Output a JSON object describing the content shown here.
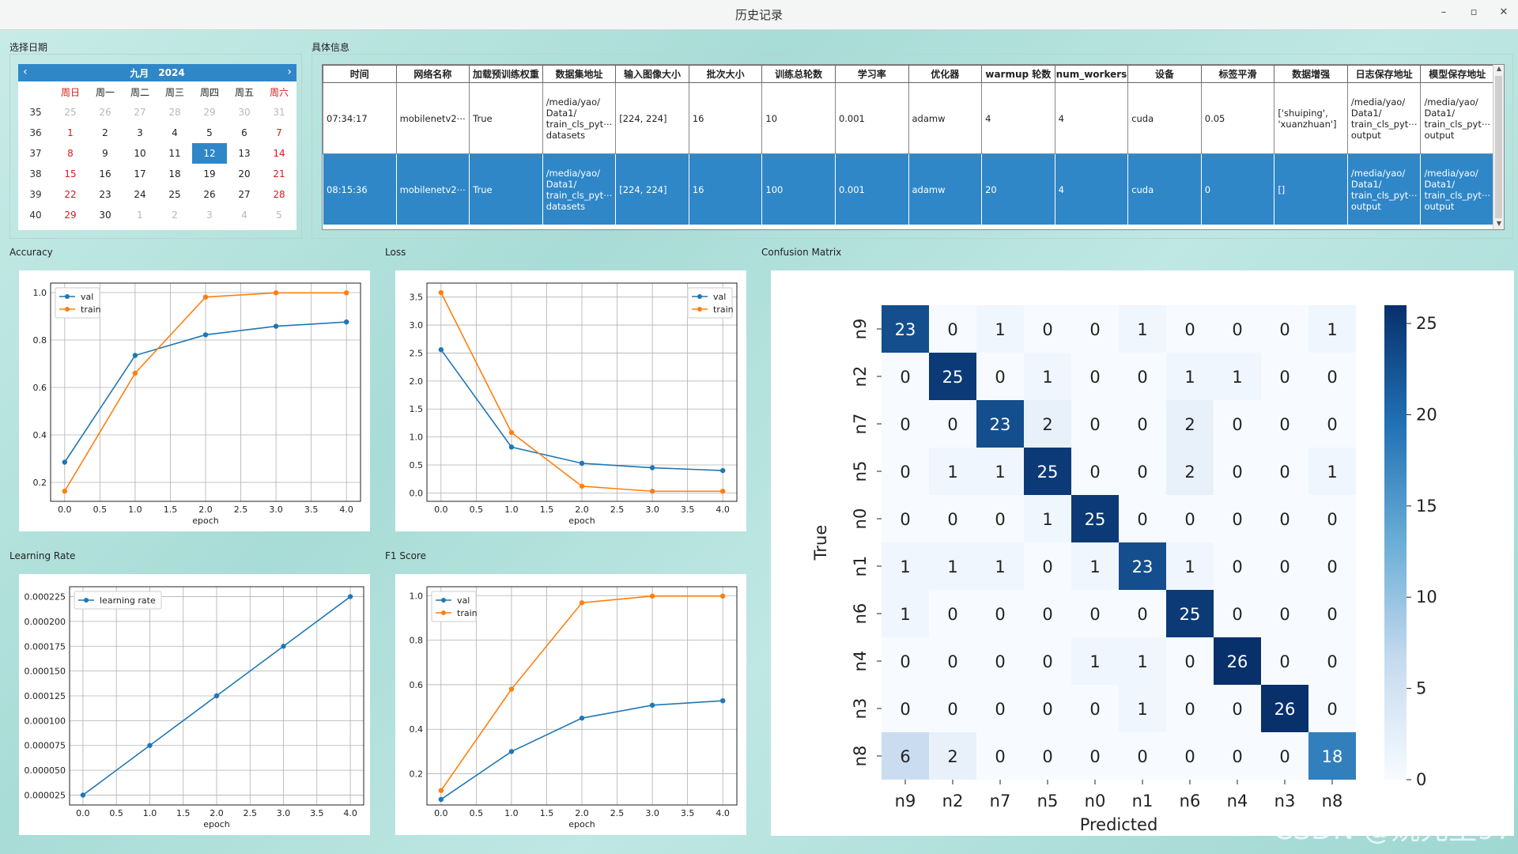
{
  "window": {
    "title": "历史记录",
    "controls": [
      "–",
      "▫",
      "✕"
    ]
  },
  "labels": {
    "date": "选择日期",
    "detail": "具体信息",
    "accuracy": "Accuracy",
    "loss": "Loss",
    "cm": "Confusion Matrix",
    "lr": "Learning Rate",
    "f1": "F1 Score"
  },
  "calendar": {
    "month": "九月",
    "year": "2024",
    "prev_icon": "‹",
    "next_icon": "›",
    "weekdays": [
      "周日",
      "周一",
      "周二",
      "周三",
      "周四",
      "周五",
      "周六"
    ],
    "weeks": [
      {
        "wk": "35",
        "days": [
          "25",
          "26",
          "27",
          "28",
          "29",
          "30",
          "31"
        ],
        "dim": [
          0,
          1,
          2,
          3,
          4,
          5,
          6
        ]
      },
      {
        "wk": "36",
        "days": [
          "1",
          "2",
          "3",
          "4",
          "5",
          "6",
          "7"
        ],
        "dim": []
      },
      {
        "wk": "37",
        "days": [
          "8",
          "9",
          "10",
          "11",
          "12",
          "13",
          "14"
        ],
        "dim": []
      },
      {
        "wk": "38",
        "days": [
          "15",
          "16",
          "17",
          "18",
          "19",
          "20",
          "21"
        ],
        "dim": []
      },
      {
        "wk": "39",
        "days": [
          "22",
          "23",
          "24",
          "25",
          "26",
          "27",
          "28"
        ],
        "dim": []
      },
      {
        "wk": "40",
        "days": [
          "29",
          "30",
          "1",
          "2",
          "3",
          "4",
          "5"
        ],
        "dim": [
          2,
          3,
          4,
          5,
          6
        ]
      }
    ],
    "selected": "12"
  },
  "table": {
    "headers": [
      "时间",
      "网络名称",
      "加载预训练权重",
      "数据集地址",
      "输入图像大小",
      "批次大小",
      "训练总轮数",
      "学习率",
      "优化器",
      "warmup 轮数",
      "num_workers",
      "设备",
      "标签平滑",
      "数据增强",
      "日志保存地址",
      "模型保存地址"
    ],
    "rows": [
      [
        "07:34:17",
        "mobilenetv2⋯",
        "True",
        "/media/yao/ Data1/ train_cls_pyt⋯ datasets",
        "[224, 224]",
        "16",
        "10",
        "0.001",
        "adamw",
        "4",
        "4",
        "cuda",
        "0.05",
        "['shuiping', 'xuanzhuan']",
        "/media/yao/ Data1/ train_cls_pyt⋯ output",
        "/media/yao/ Data1/ train_cls_pyt⋯ output"
      ],
      [
        "08:15:36",
        "mobilenetv2⋯",
        "True",
        "/media/yao/ Data1/ train_cls_pyt⋯ datasets",
        "[224, 224]",
        "16",
        "100",
        "0.001",
        "adamw",
        "20",
        "4",
        "cuda",
        "0",
        "[]",
        "/media/yao/ Data1/ train_cls_pyt⋯ output",
        "/media/yao/ Data1/ train_cls_pyt⋯ output"
      ]
    ],
    "selected_row": 1
  },
  "chart_data": [
    {
      "id": "accuracy",
      "type": "line",
      "xlabel": "epoch",
      "x": [
        0,
        1,
        2,
        3,
        4
      ],
      "xlim": [
        -0.2,
        4.2
      ],
      "ylim": [
        0.12,
        1.04
      ],
      "xticks": [
        0.0,
        0.5,
        1.0,
        1.5,
        2.0,
        2.5,
        3.0,
        3.5,
        4.0
      ],
      "yticks": [
        0.2,
        0.4,
        0.6,
        0.8,
        1.0
      ],
      "legend": "top-left",
      "series": [
        {
          "name": "val",
          "color": "#1f77b4",
          "values": [
            0.285,
            0.735,
            0.822,
            0.858,
            0.876
          ]
        },
        {
          "name": "train",
          "color": "#ff7f0e",
          "values": [
            0.163,
            0.66,
            0.981,
            0.999,
            0.999
          ]
        }
      ]
    },
    {
      "id": "loss",
      "type": "line",
      "xlabel": "epoch",
      "x": [
        0,
        1,
        2,
        3,
        4
      ],
      "xlim": [
        -0.2,
        4.2
      ],
      "ylim": [
        -0.15,
        3.75
      ],
      "xticks": [
        0.0,
        0.5,
        1.0,
        1.5,
        2.0,
        2.5,
        3.0,
        3.5,
        4.0
      ],
      "yticks": [
        0.0,
        0.5,
        1.0,
        1.5,
        2.0,
        2.5,
        3.0,
        3.5
      ],
      "legend": "top-right",
      "series": [
        {
          "name": "val",
          "color": "#1f77b4",
          "values": [
            2.56,
            0.82,
            0.53,
            0.45,
            0.4
          ]
        },
        {
          "name": "train",
          "color": "#ff7f0e",
          "values": [
            3.58,
            1.08,
            0.12,
            0.03,
            0.03
          ]
        }
      ]
    },
    {
      "id": "lr",
      "type": "line",
      "xlabel": "epoch",
      "x": [
        0,
        1,
        2,
        3,
        4
      ],
      "xlim": [
        -0.2,
        4.2
      ],
      "ylim": [
        1.5e-05,
        0.000235
      ],
      "xticks": [
        0.0,
        0.5,
        1.0,
        1.5,
        2.0,
        2.5,
        3.0,
        3.5,
        4.0
      ],
      "yticks": [
        2.5e-05,
        5e-05,
        7.5e-05,
        0.0001,
        0.000125,
        0.00015,
        0.000175,
        0.0002,
        0.000225
      ],
      "ytick_labels": [
        "0.000025",
        "0.000050",
        "0.000075",
        "0.000100",
        "0.000125",
        "0.000150",
        "0.000175",
        "0.000200",
        "0.000225"
      ],
      "legend": "top-left",
      "series": [
        {
          "name": "learning rate",
          "color": "#1f77b4",
          "values": [
            2.5e-05,
            7.5e-05,
            0.000125,
            0.000175,
            0.000225
          ]
        }
      ]
    },
    {
      "id": "f1",
      "type": "line",
      "xlabel": "epoch",
      "x": [
        0,
        1,
        2,
        3,
        4
      ],
      "xlim": [
        -0.2,
        4.2
      ],
      "ylim": [
        0.06,
        1.04
      ],
      "xticks": [
        0.0,
        0.5,
        1.0,
        1.5,
        2.0,
        2.5,
        3.0,
        3.5,
        4.0
      ],
      "yticks": [
        0.2,
        0.4,
        0.6,
        0.8,
        1.0
      ],
      "legend": "top-left",
      "series": [
        {
          "name": "val",
          "color": "#1f77b4",
          "values": [
            0.085,
            0.3,
            0.45,
            0.508,
            0.528
          ]
        },
        {
          "name": "train",
          "color": "#ff7f0e",
          "values": [
            0.125,
            0.58,
            0.968,
            0.998,
            0.998
          ]
        }
      ]
    },
    {
      "id": "confusion",
      "type": "heatmap",
      "xlabel": "Predicted",
      "ylabel": "True",
      "labels": [
        "n9",
        "n2",
        "n7",
        "n5",
        "n0",
        "n1",
        "n6",
        "n4",
        "n3",
        "n8"
      ],
      "matrix": [
        [
          23,
          0,
          1,
          0,
          0,
          1,
          0,
          0,
          0,
          1
        ],
        [
          0,
          25,
          0,
          1,
          0,
          0,
          1,
          1,
          0,
          0
        ],
        [
          0,
          0,
          23,
          2,
          0,
          0,
          2,
          0,
          0,
          0
        ],
        [
          0,
          1,
          1,
          25,
          0,
          0,
          2,
          0,
          0,
          1
        ],
        [
          0,
          0,
          0,
          1,
          25,
          0,
          0,
          0,
          0,
          0
        ],
        [
          1,
          1,
          1,
          0,
          1,
          23,
          1,
          0,
          0,
          0
        ],
        [
          1,
          0,
          0,
          0,
          0,
          0,
          25,
          0,
          0,
          0
        ],
        [
          0,
          0,
          0,
          0,
          1,
          1,
          0,
          26,
          0,
          0
        ],
        [
          0,
          0,
          0,
          0,
          0,
          1,
          0,
          0,
          26,
          0
        ],
        [
          6,
          2,
          0,
          0,
          0,
          0,
          0,
          0,
          0,
          18
        ]
      ],
      "vmin": 0,
      "vmax": 26,
      "colorbar_ticks": [
        0,
        5,
        10,
        15,
        20,
        25
      ]
    }
  ],
  "watermark": "CSDN @姚先生97"
}
